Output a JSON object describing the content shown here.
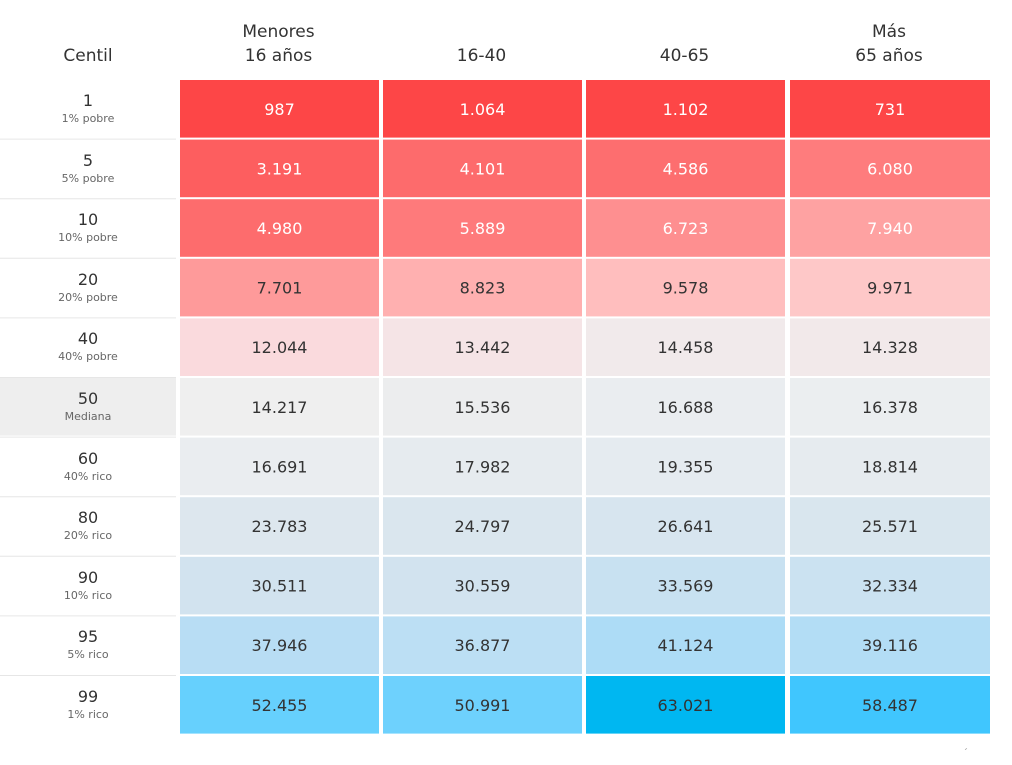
{
  "chart_data": {
    "type": "heatmap",
    "row_header": "Centil",
    "columns": [
      {
        "line1": "Menores",
        "line2": "16 años"
      },
      {
        "line1": "",
        "line2": "16-40"
      },
      {
        "line1": "",
        "line2": "40-65"
      },
      {
        "line1": "Más",
        "line2": "65 años"
      }
    ],
    "rows": [
      {
        "centil": "1",
        "label": "1% pobre",
        "values": [
          "987",
          "1.064",
          "1.102",
          "731"
        ],
        "colors": [
          "#fd4647",
          "#fd4647",
          "#fd4647",
          "#fd4647"
        ]
      },
      {
        "centil": "5",
        "label": "5% pobre",
        "values": [
          "3.191",
          "4.101",
          "4.586",
          "6.080"
        ],
        "colors": [
          "#fd5e5f",
          "#fd6b6c",
          "#fd6e6f",
          "#fe7c7d"
        ]
      },
      {
        "centil": "10",
        "label": "10% pobre",
        "values": [
          "4.980",
          "5.889",
          "6.723",
          "7.940"
        ],
        "colors": [
          "#fd6c6d",
          "#fe7a7b",
          "#fe8f90",
          "#fea2a2"
        ]
      },
      {
        "centil": "20",
        "label": "20% pobre",
        "values": [
          "7.701",
          "8.823",
          "9.578",
          "9.971"
        ],
        "colors": [
          "#fe9a9a",
          "#ffb0b0",
          "#ffbebe",
          "#fec8c8"
        ]
      },
      {
        "centil": "40",
        "label": "40% pobre",
        "values": [
          "12.044",
          "13.442",
          "14.458",
          "14.328"
        ],
        "colors": [
          "#fadadd",
          "#f5e4e6",
          "#f1eaeb",
          "#f2e9ea"
        ]
      },
      {
        "centil": "50",
        "label": "Mediana",
        "values": [
          "14.217",
          "15.536",
          "16.688",
          "16.378"
        ],
        "colors": [
          "#efefef",
          "#ecedee",
          "#eaedf0",
          "#ebeef0"
        ],
        "label_bg": "#eeeeee"
      },
      {
        "centil": "60",
        "label": "40% rico",
        "values": [
          "16.691",
          "17.982",
          "19.355",
          "18.814"
        ],
        "colors": [
          "#eaedf0",
          "#e6ebef",
          "#e5ebf0",
          "#e6ebef"
        ]
      },
      {
        "centil": "80",
        "label": "20% rico",
        "values": [
          "23.783",
          "24.797",
          "26.641",
          "25.571"
        ],
        "colors": [
          "#dde7ee",
          "#dae6ee",
          "#d7e5ef",
          "#d9e6ee"
        ]
      },
      {
        "centil": "90",
        "label": "10% rico",
        "values": [
          "30.511",
          "30.559",
          "33.569",
          "32.334"
        ],
        "colors": [
          "#d2e3ef",
          "#d2e3ef",
          "#c8e1f1",
          "#cbe2f1"
        ]
      },
      {
        "centil": "95",
        "label": "5% rico",
        "values": [
          "37.946",
          "36.877",
          "41.124",
          "39.116"
        ],
        "colors": [
          "#b8ddf4",
          "#bcdff4",
          "#addcf6",
          "#b3ddf5"
        ]
      },
      {
        "centil": "99",
        "label": "1% rico",
        "values": [
          "52.455",
          "50.991",
          "63.021",
          "58.487"
        ],
        "colors": [
          "#66d0fd",
          "#6ed1fd",
          "#00b7f1",
          "#40c6fe"
        ]
      }
    ],
    "corner_mark": "´"
  }
}
